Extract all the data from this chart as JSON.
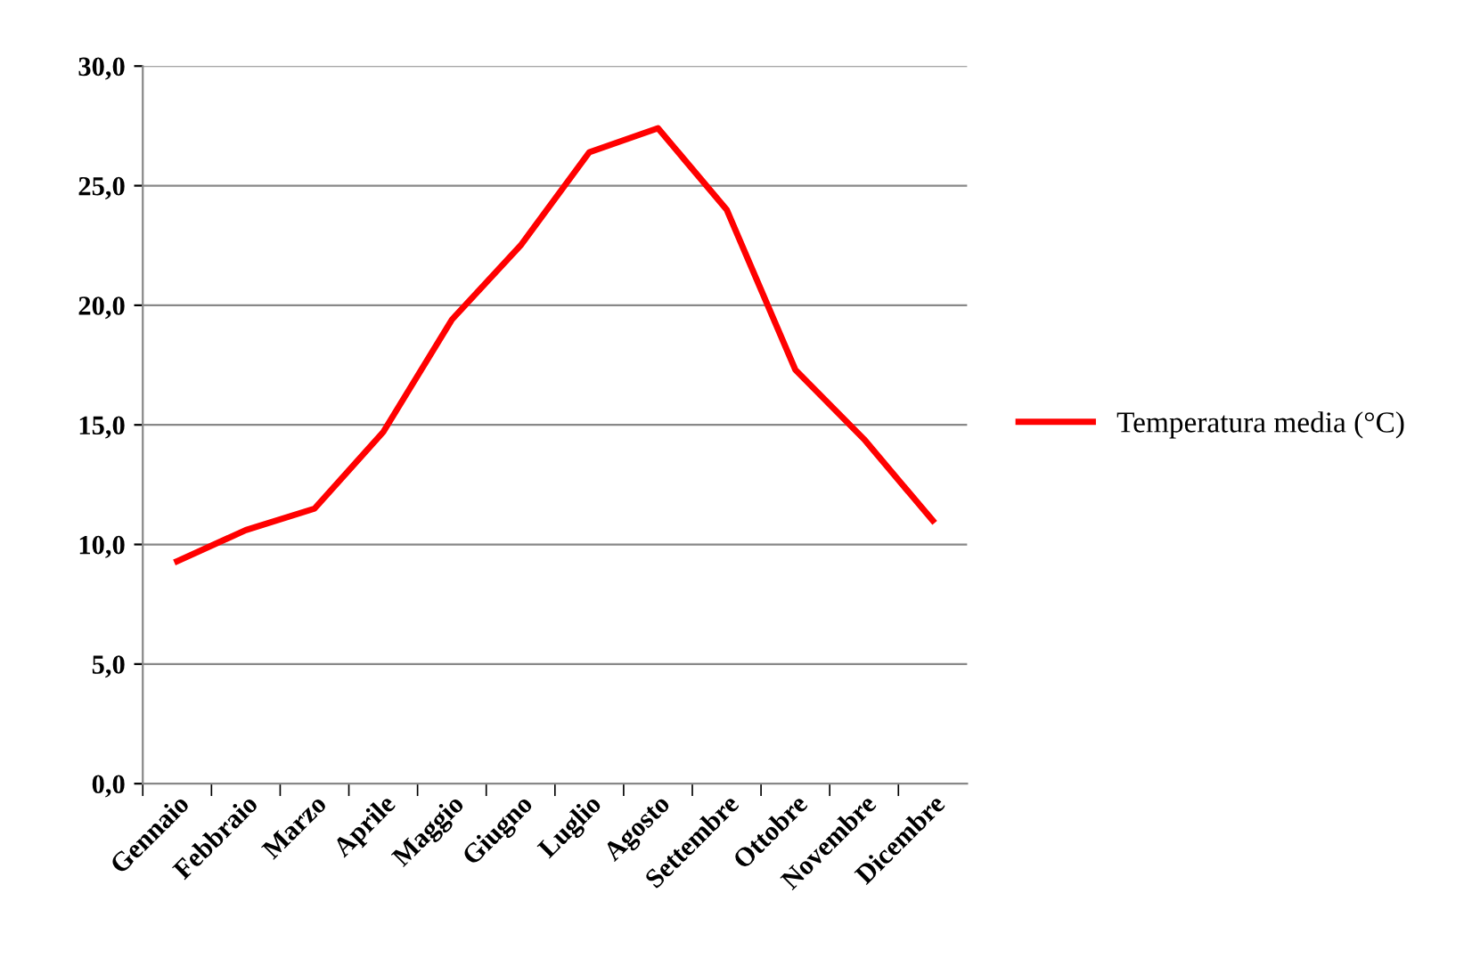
{
  "chart_data": {
    "type": "line",
    "categories": [
      "Gennaio",
      "Febbraio",
      "Marzo",
      "Aprile",
      "Maggio",
      "Giugno",
      "Luglio",
      "Agosto",
      "Settembre",
      "Ottobre",
      "Novembre",
      "Dicembre"
    ],
    "series": [
      {
        "name": "Temperatura media (°C)",
        "color": "#ff0000",
        "values": [
          9.3,
          10.6,
          11.5,
          14.7,
          19.4,
          22.5,
          26.4,
          27.4,
          24.0,
          17.3,
          14.4,
          11.0
        ]
      }
    ],
    "ylim": [
      0,
      30
    ],
    "yticks": [
      {
        "value": 0,
        "label": "0,0"
      },
      {
        "value": 5,
        "label": "5,0"
      },
      {
        "value": 10,
        "label": "10,0"
      },
      {
        "value": 15,
        "label": "15,0"
      },
      {
        "value": 20,
        "label": "20,0"
      },
      {
        "value": 25,
        "label": "25,0"
      },
      {
        "value": 30,
        "label": "30,0"
      }
    ],
    "grid": "y",
    "legend": "right",
    "marker": "none",
    "line_style": "solid"
  }
}
